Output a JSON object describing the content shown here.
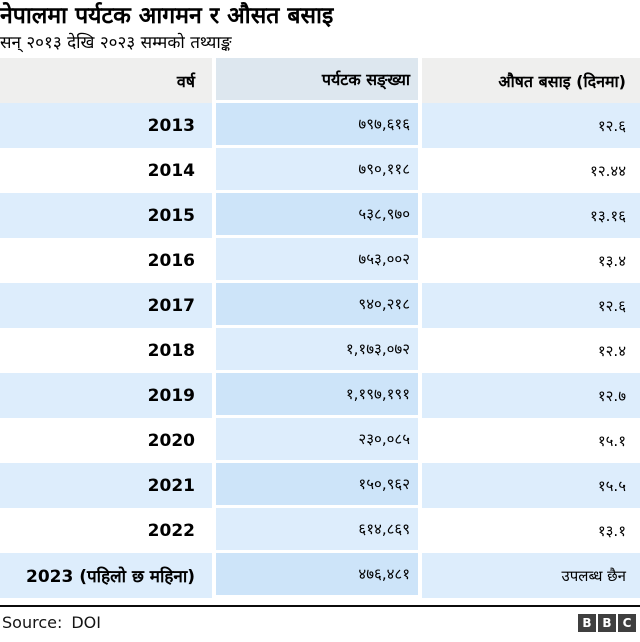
{
  "header": {
    "title": "नेपालमा पर्यटक आगमन र औसत बसाइ",
    "subtitle": "सन् २०१३ देखि २०२३ सम्मको तथ्याङ्क"
  },
  "table": {
    "columns": [
      "वर्ष",
      "पर्यटक सङ्ख्या",
      "औषत बसाइ (दिनमा)"
    ],
    "rows": [
      {
        "year": "2013",
        "tourists": "७९७,६१६",
        "stay": "१२.६"
      },
      {
        "year": "2014",
        "tourists": "७९०,११८",
        "stay": "१२.४४"
      },
      {
        "year": "2015",
        "tourists": "५३८,९७०",
        "stay": "१३.१६"
      },
      {
        "year": "2016",
        "tourists": "७५३,००२",
        "stay": "१३.४"
      },
      {
        "year": "2017",
        "tourists": "९४०,२१८",
        "stay": "१२.६"
      },
      {
        "year": "2018",
        "tourists": "१,१७३,०७२",
        "stay": "१२.४"
      },
      {
        "year": "2019",
        "tourists": "१,१९७,१९१",
        "stay": "१२.७"
      },
      {
        "year": "2020",
        "tourists": "२३०,०८५",
        "stay": "१५.१"
      },
      {
        "year": "2021",
        "tourists": "१५०,९६२",
        "stay": "१५.५"
      },
      {
        "year": "2022",
        "tourists": "६१४,८६९",
        "stay": "१३.१"
      },
      {
        "year": "2023 (पहिलो छ महिना)",
        "tourists": "४७६,४८१",
        "stay": "उपलब्ध छैन"
      }
    ]
  },
  "chart_data": {
    "type": "table",
    "title": "नेपालमा पर्यटक आगमन र औसत बसाइ",
    "subtitle": "सन् २०१३ देखि २०२३ सम्मको तथ्याङ्क",
    "columns": [
      "वर्ष",
      "पर्यटक सङ्ख्या",
      "औषत बसाइ (दिनमा)"
    ],
    "years": [
      "2013",
      "2014",
      "2015",
      "2016",
      "2017",
      "2018",
      "2019",
      "2020",
      "2021",
      "2022",
      "2023 (पहिलो छ महिना)"
    ],
    "tourist_arrivals": [
      797616,
      790118,
      538970,
      753002,
      940218,
      1173072,
      1197191,
      230085,
      150962,
      614869,
      476481
    ],
    "average_stay_days": [
      12.6,
      12.44,
      13.16,
      13.4,
      12.6,
      12.4,
      12.7,
      15.1,
      15.5,
      13.1,
      null
    ],
    "average_stay_note_2023": "उपलब्ध छैन",
    "source": "DOI"
  },
  "footer": {
    "source_label": "Source:",
    "source_value": "DOI",
    "logo": {
      "b1": "B",
      "b2": "B",
      "b3": "C"
    }
  },
  "colors": {
    "row_blue_light": "#ddedfc",
    "row_blue_mid": "#cde4f9",
    "header_gray": "#efefee",
    "header_blue_gray": "#dde7ef",
    "footer_rule": "#0b0b0b",
    "bbc_block": "#3f3f3f"
  }
}
